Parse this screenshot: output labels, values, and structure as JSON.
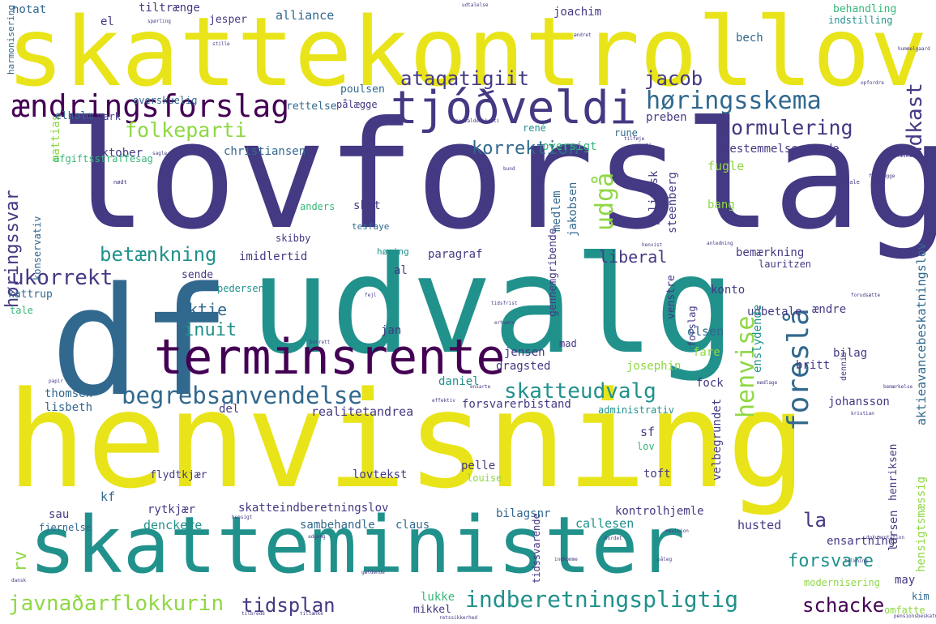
{
  "colors": {
    "yellow": "#e8e419",
    "lime": "#8fd744",
    "green": "#35b779",
    "teal": "#21918c",
    "blue": "#31688e",
    "indigo": "#443983",
    "purple": "#440154"
  },
  "words": [
    {
      "text": "skattekontrollov",
      "c": "yellow"
    },
    {
      "text": "lovforslag",
      "c": "indigo"
    },
    {
      "text": "henvisning",
      "c": "yellow"
    },
    {
      "text": "udvalg",
      "c": "teal"
    },
    {
      "text": "df",
      "c": "blue"
    },
    {
      "text": "skatteminister",
      "c": "teal"
    },
    {
      "text": "terminsrente",
      "c": "purple"
    },
    {
      "text": "tjóðveldi",
      "c": "indigo"
    },
    {
      "text": "ændringsforslag",
      "c": "purple"
    },
    {
      "text": "høringsskema",
      "c": "blue"
    },
    {
      "text": "begrebsanvendelse",
      "c": "blue"
    },
    {
      "text": "indberetningspligtig",
      "c": "teal"
    },
    {
      "text": "javnaðarflokkurin",
      "c": "lime"
    },
    {
      "text": "folkeparti",
      "c": "lime"
    },
    {
      "text": "formulering",
      "c": "indigo"
    },
    {
      "text": "korrektion",
      "c": "blue"
    },
    {
      "text": "ataqatigiit",
      "c": "indigo"
    },
    {
      "text": "jacob",
      "c": "indigo"
    },
    {
      "text": "betænkning",
      "c": "teal"
    },
    {
      "text": "ukorrekt",
      "c": "indigo"
    },
    {
      "text": "skatteudvalg",
      "c": "teal"
    },
    {
      "text": "tidsplan",
      "c": "indigo"
    },
    {
      "text": "schacke",
      "c": "purple"
    },
    {
      "text": "forsvare",
      "c": "teal"
    },
    {
      "text": "liberal",
      "c": "indigo"
    },
    {
      "text": "inuit",
      "c": "teal"
    },
    {
      "text": "aktie",
      "c": "blue"
    },
    {
      "text": "la",
      "c": "indigo"
    },
    {
      "text": "oversigt",
      "c": "green"
    },
    {
      "text": "christiansen",
      "c": "blue"
    },
    {
      "text": "oktober",
      "c": "indigo"
    },
    {
      "text": "paragraf",
      "c": "indigo"
    },
    {
      "text": "imidlertid",
      "c": "indigo"
    },
    {
      "text": "realitet",
      "c": "indigo"
    },
    {
      "text": "andrea",
      "c": "indigo"
    },
    {
      "text": "dragsted",
      "c": "indigo"
    },
    {
      "text": "jensen",
      "c": "indigo"
    },
    {
      "text": "josephin",
      "c": "lime"
    },
    {
      "text": "olsen",
      "c": "blue"
    },
    {
      "text": "sambehandle",
      "c": "blue"
    },
    {
      "text": "claus",
      "c": "blue"
    },
    {
      "text": "skatteindberetningslov",
      "c": "indigo"
    },
    {
      "text": "kontrolhjemle",
      "c": "indigo"
    },
    {
      "text": "husted",
      "c": "indigo"
    },
    {
      "text": "callesen",
      "c": "teal"
    },
    {
      "text": "denckere",
      "c": "teal"
    },
    {
      "text": "rytkjær",
      "c": "indigo"
    },
    {
      "text": "bilagsnr",
      "c": "blue"
    },
    {
      "text": "alliance",
      "c": "blue"
    },
    {
      "text": "tiltrænge",
      "c": "indigo"
    },
    {
      "text": "notat",
      "c": "blue"
    },
    {
      "text": "el",
      "c": "indigo"
    },
    {
      "text": "jesper",
      "c": "indigo"
    },
    {
      "text": "joachim",
      "c": "indigo"
    },
    {
      "text": "behandling",
      "c": "green"
    },
    {
      "text": "indstilling",
      "c": "teal"
    },
    {
      "text": "bech",
      "c": "blue"
    },
    {
      "text": "poulsen",
      "c": "blue"
    },
    {
      "text": "pålægge",
      "c": "indigo"
    },
    {
      "text": "overskuelig",
      "c": "blue"
    },
    {
      "text": "rettelse",
      "c": "blue"
    },
    {
      "text": "elholm",
      "c": "blue"
    },
    {
      "text": "mark",
      "c": "indigo"
    },
    {
      "text": "preben",
      "c": "indigo"
    },
    {
      "text": "rune",
      "c": "blue"
    },
    {
      "text": "bestemmelse",
      "c": "indigo"
    },
    {
      "text": "gade",
      "c": "indigo"
    },
    {
      "text": "fugle",
      "c": "lime"
    },
    {
      "text": "bang",
      "c": "lime"
    },
    {
      "text": "skat",
      "c": "indigo"
    },
    {
      "text": "anders",
      "c": "green"
    },
    {
      "text": "skibby",
      "c": "indigo"
    },
    {
      "text": "tesfaye",
      "c": "blue"
    },
    {
      "text": "høring",
      "c": "teal"
    },
    {
      "text": "bemærkning",
      "c": "indigo"
    },
    {
      "text": "lauritzen",
      "c": "indigo"
    },
    {
      "text": "konto",
      "c": "indigo"
    },
    {
      "text": "ændre",
      "c": "indigo"
    },
    {
      "text": "udbetale",
      "c": "indigo"
    },
    {
      "text": "fare",
      "c": "lime"
    },
    {
      "text": "bilag",
      "c": "indigo"
    },
    {
      "text": "britt",
      "c": "indigo"
    },
    {
      "text": "fock",
      "c": "indigo"
    },
    {
      "text": "johansson",
      "c": "indigo"
    },
    {
      "text": "daniel",
      "c": "teal"
    },
    {
      "text": "forsvarerbistand",
      "c": "indigo"
    },
    {
      "text": "thomsen",
      "c": "blue"
    },
    {
      "text": "lisbeth",
      "c": "blue"
    },
    {
      "text": "del",
      "c": "indigo"
    },
    {
      "text": "sende",
      "c": "indigo"
    },
    {
      "text": "pedersen",
      "c": "teal"
    },
    {
      "text": "kattrup",
      "c": "blue"
    },
    {
      "text": "tale",
      "c": "green"
    },
    {
      "text": "al",
      "c": "indigo"
    },
    {
      "text": "jan",
      "c": "indigo"
    },
    {
      "text": "mad",
      "c": "indigo"
    },
    {
      "text": "administrativ",
      "c": "teal"
    },
    {
      "text": "sf",
      "c": "indigo"
    },
    {
      "text": "lov",
      "c": "green"
    },
    {
      "text": "pelle",
      "c": "indigo"
    },
    {
      "text": "louise",
      "c": "lime"
    },
    {
      "text": "flydtkjær",
      "c": "indigo"
    },
    {
      "text": "lovtekst",
      "c": "indigo"
    },
    {
      "text": "toft",
      "c": "indigo"
    },
    {
      "text": "kf",
      "c": "blue"
    },
    {
      "text": "sau",
      "c": "indigo"
    },
    {
      "text": "fjernelse",
      "c": "blue"
    },
    {
      "text": "lukke",
      "c": "green"
    },
    {
      "text": "mikkel",
      "c": "indigo"
    },
    {
      "text": "modernisering",
      "c": "lime"
    },
    {
      "text": "ensartning",
      "c": "indigo"
    },
    {
      "text": "may",
      "c": "indigo"
    },
    {
      "text": "kim",
      "c": "blue"
    },
    {
      "text": "omfatte",
      "c": "lime"
    },
    {
      "text": "harmonisering",
      "c": "blue"
    },
    {
      "text": "konservativ",
      "c": "blue"
    },
    {
      "text": "høringssvar",
      "c": "indigo"
    },
    {
      "text": "afgiftsstraffesag",
      "c": "green"
    },
    {
      "text": "rené",
      "c": "teal"
    },
    {
      "text": "rv",
      "c": "lime"
    },
    {
      "text": "mattias",
      "c": "lime"
    },
    {
      "text": "henvise",
      "c": "lime"
    },
    {
      "text": "foreslå",
      "c": "blue"
    },
    {
      "text": "udkast",
      "c": "indigo"
    },
    {
      "text": "udgå",
      "c": "lime"
    },
    {
      "text": "politisk",
      "c": "indigo"
    },
    {
      "text": "steenberg",
      "c": "indigo"
    },
    {
      "text": "medlem",
      "c": "blue"
    },
    {
      "text": "jakobsen",
      "c": "blue"
    },
    {
      "text": "gennemgribende",
      "c": "indigo"
    },
    {
      "text": "venstre",
      "c": "indigo"
    },
    {
      "text": "enslydende",
      "c": "teal"
    },
    {
      "text": "velbegrundet",
      "c": "indigo"
    },
    {
      "text": "aktieavancebeskatningslov",
      "c": "blue"
    },
    {
      "text": "henriksen",
      "c": "indigo"
    },
    {
      "text": "hensigtsmæssig",
      "c": "lime"
    },
    {
      "text": "larsen",
      "c": "indigo"
    },
    {
      "text": "tidssvarende",
      "c": "indigo"
    },
    {
      "text": "forslag",
      "c": "indigo"
    },
    {
      "text": "dennis",
      "c": "indigo"
    },
    {
      "text": "socialdemokrati",
      "c": "indigo"
    },
    {
      "text": "repræsentere",
      "c": "indigo"
    },
    {
      "text": "udtalelse",
      "c": "indigo"
    },
    {
      "text": "spørling",
      "c": "indigo"
    },
    {
      "text": "stille",
      "c": "indigo"
    },
    {
      "text": "nødt",
      "c": "indigo"
    },
    {
      "text": "male",
      "c": "indigo"
    },
    {
      "text": "parti",
      "c": "indigo"
    },
    {
      "text": "sagle",
      "c": "indigo"
    },
    {
      "text": "bund",
      "c": "indigo"
    },
    {
      "text": "tilføje",
      "c": "indigo"
    },
    {
      "text": "henvist",
      "c": "indigo"
    },
    {
      "text": "borrett",
      "c": "indigo"
    },
    {
      "text": "hensigt",
      "c": "indigo"
    },
    {
      "text": "adgang",
      "c": "indigo"
    },
    {
      "text": "revision",
      "c": "indigo"
    },
    {
      "text": "indkomme",
      "c": "indigo"
    },
    {
      "text": "tiltænke",
      "c": "indigo"
    },
    {
      "text": "tilbrede",
      "c": "indigo"
    },
    {
      "text": "dansk",
      "c": "indigo"
    },
    {
      "text": "påleg",
      "c": "indigo"
    },
    {
      "text": "papir",
      "c": "indigo"
    },
    {
      "text": "bemærkelse",
      "c": "indigo"
    },
    {
      "text": "kristian",
      "c": "indigo"
    },
    {
      "text": "effektiv",
      "c": "indigo"
    },
    {
      "text": "ensarte",
      "c": "indigo"
    },
    {
      "text": "bordet",
      "c": "indigo"
    },
    {
      "text": "mødlage",
      "c": "indigo"
    },
    {
      "text": "dokumentation",
      "c": "indigo"
    },
    {
      "text": "retssikkerhed",
      "c": "indigo"
    },
    {
      "text": "pensionsbeskatningslov",
      "c": "indigo"
    },
    {
      "text": "hummelgaard",
      "c": "indigo"
    },
    {
      "text": "opfordre",
      "c": "indigo"
    },
    {
      "text": "anledning",
      "c": "indigo"
    },
    {
      "text": "erhverv",
      "c": "indigo"
    },
    {
      "text": "forudsætte",
      "c": "indigo"
    },
    {
      "text": "fremlægge",
      "c": "indigo"
    },
    {
      "text": "ændret",
      "c": "indigo"
    },
    {
      "text": "fejl",
      "c": "indigo"
    },
    {
      "text": "tolkning",
      "c": "indigo"
    },
    {
      "text": "tidsfrist",
      "c": "indigo"
    },
    {
      "text": "gældende",
      "c": "indigo"
    },
    {
      "text": "berigtige",
      "c": "indigo"
    },
    {
      "text": "fastsætte",
      "c": "indigo"
    }
  ]
}
